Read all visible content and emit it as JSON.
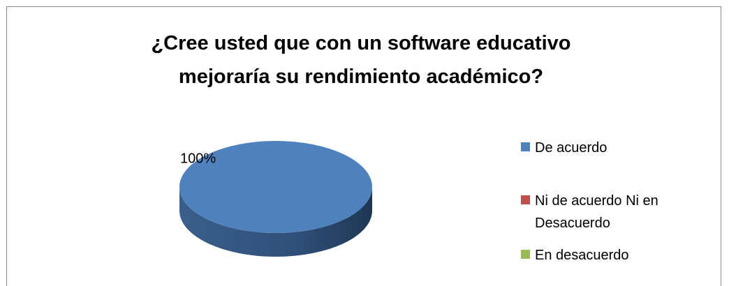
{
  "chart_data": {
    "type": "pie",
    "title": "¿Cree usted que con un software educativo mejoraría su rendimiento académico?",
    "categories": [
      "De acuerdo",
      "Ni de acuerdo Ni en Desacuerdo",
      "En desacuerdo"
    ],
    "values": [
      100,
      0,
      0
    ],
    "value_labels": [
      "100%",
      null,
      null
    ],
    "colors": [
      "#4f81bd",
      "#c0504d",
      "#9bbb59"
    ],
    "legend": "right"
  }
}
